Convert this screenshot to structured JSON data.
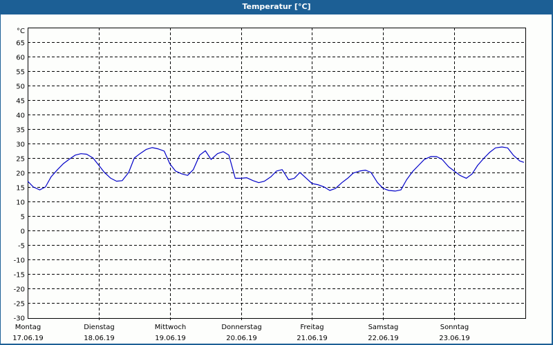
{
  "window": {
    "title": "Temperatur [°C]"
  },
  "chart_data": {
    "type": "line",
    "title": "Temperatur [°C]",
    "ylabel": "°C",
    "xlabel": "",
    "ylim": [
      -30,
      67.5
    ],
    "yticks": [
      65,
      60,
      55,
      50,
      45,
      40,
      35,
      30,
      25,
      20,
      15,
      10,
      5,
      0,
      -5,
      -10,
      -15,
      -20,
      -25,
      -30
    ],
    "grid": true,
    "line_color": "#0000c8",
    "x_categories": [
      {
        "day": "Montag",
        "date": "17.06.19"
      },
      {
        "day": "Dienstag",
        "date": "18.06.19"
      },
      {
        "day": "Mittwoch",
        "date": "19.06.19"
      },
      {
        "day": "Donnerstag",
        "date": "20.06.19"
      },
      {
        "day": "Freitag",
        "date": "21.06.19"
      },
      {
        "day": "Samstag",
        "date": "22.06.19"
      },
      {
        "day": "Sonntag",
        "date": "23.06.19"
      }
    ],
    "series": [
      {
        "name": "Temperatur",
        "x_days": [
          0,
          0.08,
          0.17,
          0.25,
          0.33,
          0.42,
          0.5,
          0.58,
          0.67,
          0.75,
          0.83,
          0.92,
          1.0,
          1.08,
          1.17,
          1.25,
          1.33,
          1.42,
          1.5,
          1.58,
          1.67,
          1.75,
          1.83,
          1.92,
          2.0,
          2.08,
          2.17,
          2.25,
          2.33,
          2.42,
          2.5,
          2.58,
          2.67,
          2.75,
          2.83,
          2.92,
          3.0,
          3.08,
          3.17,
          3.25,
          3.33,
          3.42,
          3.5,
          3.58,
          3.67,
          3.75,
          3.83,
          3.92,
          4.0,
          4.08,
          4.17,
          4.25,
          4.33,
          4.42,
          4.5,
          4.58,
          4.67,
          4.75,
          4.83,
          4.92,
          5.0,
          5.08,
          5.17,
          5.25,
          5.33,
          5.42,
          5.5,
          5.58,
          5.67,
          5.75,
          5.83,
          5.92,
          6.0,
          6.08,
          6.17,
          6.25,
          6.33,
          6.42,
          6.5,
          6.58,
          6.67,
          6.75,
          6.83,
          6.92,
          6.98
        ],
        "values": [
          17,
          15,
          14,
          15,
          18.5,
          21,
          23,
          24.5,
          26,
          26.5,
          26.3,
          25,
          22.5,
          20,
          18,
          17,
          17.2,
          20,
          25,
          26.5,
          28,
          28.6,
          28.2,
          27.4,
          23,
          20.5,
          19.5,
          19,
          21,
          26,
          27.5,
          24.5,
          26.5,
          27.2,
          26,
          18,
          18,
          18.2,
          17.2,
          16.5,
          17,
          18.5,
          20.5,
          21,
          17.5,
          18,
          20,
          18,
          16.2,
          15.8,
          15,
          13.8,
          14.5,
          16.5,
          18,
          19.8,
          20.5,
          20.8,
          20,
          16.5,
          14.5,
          13.8,
          13.6,
          14,
          17.5,
          20.5,
          22.5,
          24.5,
          25.5,
          25.5,
          24.5,
          22,
          20.5,
          19,
          18,
          19.5,
          22.5,
          25,
          27,
          28.5,
          28.8,
          28.5,
          26,
          24,
          23.5
        ]
      }
    ]
  }
}
